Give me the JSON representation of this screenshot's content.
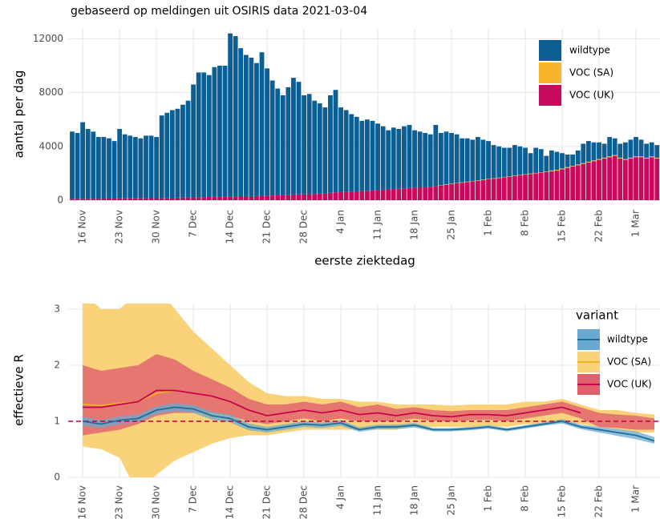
{
  "chart_data": [
    {
      "type": "bar",
      "stacked": true,
      "title": "gebaseerd op meldingen uit OSIRIS data 2021-03-04",
      "y_label": "aantal per dag",
      "x_label": "eerste ziektedag",
      "ylim": [
        0,
        12800
      ],
      "yticks": [
        0,
        4000,
        8000,
        12000
      ],
      "grid": true,
      "legend": "top-right",
      "categories": [
        null,
        null,
        "16 Nov",
        null,
        null,
        null,
        null,
        null,
        null,
        "23 Nov",
        null,
        null,
        null,
        null,
        null,
        null,
        "30 Nov",
        null,
        null,
        null,
        null,
        null,
        null,
        "7 Dec",
        null,
        null,
        null,
        null,
        null,
        null,
        "14 Dec",
        null,
        null,
        null,
        null,
        null,
        null,
        "21 Dec",
        null,
        null,
        null,
        null,
        null,
        null,
        "28 Dec",
        null,
        null,
        null,
        null,
        null,
        null,
        "4 Jan",
        null,
        null,
        null,
        null,
        null,
        null,
        "11 Jan",
        null,
        null,
        null,
        null,
        null,
        null,
        "18 Jan",
        null,
        null,
        null,
        null,
        null,
        null,
        "25 Jan",
        null,
        null,
        null,
        null,
        null,
        null,
        "1 Feb",
        null,
        null,
        null,
        null,
        null,
        null,
        "8 Feb",
        null,
        null,
        null,
        null,
        null,
        null,
        "15 Feb",
        null,
        null,
        null,
        null,
        null,
        null,
        "22 Feb",
        null,
        null,
        null,
        null,
        null,
        null,
        "1 Mar",
        null,
        null,
        null,
        null
      ],
      "series": [
        {
          "name": "wildtype",
          "color": "#0b5f94",
          "values": [
            5000,
            4900,
            5690,
            5190,
            4990,
            4590,
            4580,
            4480,
            4280,
            5170,
            4770,
            4670,
            4570,
            4460,
            4660,
            4650,
            4550,
            6140,
            6330,
            6520,
            6610,
            6900,
            7200,
            8390,
            9280,
            9270,
            9060,
            9650,
            9740,
            9740,
            12120,
            11910,
            11000,
            10500,
            10290,
            9880,
            10670,
            9460,
            8550,
            7940,
            7420,
            8000,
            8680,
            8370,
            7360,
            7450,
            6930,
            6710,
            6400,
            7250,
            7620,
            6300,
            6080,
            5760,
            5540,
            5220,
            5300,
            5180,
            4950,
            4720,
            4400,
            4570,
            4450,
            4620,
            4700,
            4270,
            4150,
            4020,
            3900,
            4550,
            3870,
            3920,
            3770,
            3620,
            3270,
            3220,
            3070,
            3220,
            2970,
            2820,
            2470,
            2320,
            2170,
            2120,
            2270,
            2120,
            1970,
            1520,
            1870,
            1720,
            1170,
            1490,
            1340,
            1140,
            940,
            840,
            1040,
            1440,
            1540,
            1340,
            1240,
            1040,
            1440,
            1240,
            1040,
            1240,
            1340,
            1440,
            1240,
            1040,
            1040,
            940
          ]
        },
        {
          "name": "VOC (SA)",
          "color": "#f7b52b",
          "values": [
            0,
            0,
            0,
            0,
            0,
            0,
            0,
            0,
            0,
            0,
            0,
            0,
            0,
            0,
            0,
            0,
            0,
            0,
            0,
            0,
            0,
            0,
            0,
            0,
            0,
            0,
            0,
            0,
            0,
            0,
            0,
            0,
            0,
            0,
            0,
            0,
            0,
            0,
            0,
            0,
            0,
            0,
            0,
            0,
            0,
            0,
            0,
            0,
            0,
            0,
            0,
            0,
            0,
            0,
            0,
            0,
            0,
            0,
            0,
            0,
            0,
            0,
            0,
            0,
            0,
            0,
            0,
            0,
            0,
            0,
            30,
            30,
            30,
            30,
            30,
            30,
            30,
            30,
            30,
            30,
            30,
            30,
            30,
            30,
            30,
            30,
            30,
            30,
            30,
            30,
            30,
            60,
            60,
            60,
            60,
            60,
            60,
            60,
            60,
            60,
            60,
            60,
            60,
            60,
            60,
            60,
            60,
            60,
            60,
            60,
            60,
            60
          ]
        },
        {
          "name": "VOC (UK)",
          "color": "#c70a5c",
          "values": [
            100,
            100,
            110,
            110,
            110,
            110,
            120,
            120,
            120,
            130,
            130,
            130,
            130,
            140,
            140,
            150,
            150,
            160,
            170,
            180,
            190,
            200,
            200,
            210,
            220,
            230,
            240,
            250,
            260,
            260,
            280,
            290,
            300,
            300,
            310,
            320,
            330,
            340,
            350,
            360,
            380,
            400,
            420,
            430,
            440,
            450,
            470,
            490,
            500,
            550,
            580,
            600,
            620,
            640,
            660,
            680,
            700,
            720,
            750,
            780,
            800,
            830,
            850,
            880,
            900,
            930,
            950,
            980,
            1000,
            1050,
            1100,
            1150,
            1200,
            1250,
            1300,
            1350,
            1400,
            1450,
            1500,
            1550,
            1600,
            1650,
            1700,
            1750,
            1800,
            1850,
            1900,
            1950,
            2000,
            2050,
            2100,
            2150,
            2200,
            2300,
            2400,
            2500,
            2600,
            2700,
            2800,
            2900,
            3000,
            3100,
            3200,
            3300,
            3100,
            3000,
            3100,
            3200,
            3200,
            3100,
            3200,
            3100
          ]
        }
      ]
    },
    {
      "type": "line",
      "y_label": "effectieve R",
      "legend_title": "variant",
      "legend": "top-right",
      "ylim": [
        0,
        3.1
      ],
      "yticks": [
        0,
        1,
        2,
        3
      ],
      "grid": true,
      "reference_line": 1,
      "reference_color": "#c0003c",
      "categories": [
        "16 Nov",
        null,
        "23 Nov",
        null,
        "30 Nov",
        null,
        "7 Dec",
        null,
        "14 Dec",
        null,
        "21 Dec",
        null,
        "28 Dec",
        null,
        "4 Jan",
        null,
        "11 Jan",
        null,
        "18 Jan",
        null,
        "25 Jan",
        null,
        "1 Feb",
        null,
        "8 Feb",
        null,
        "15 Feb",
        null,
        "22 Feb",
        null,
        "1 Mar",
        null
      ],
      "series": [
        {
          "name": "wildtype",
          "color": "#1f6e96",
          "band_color": "#6aaad2",
          "values": [
            1.0,
            0.95,
            1.02,
            1.05,
            1.2,
            1.25,
            1.22,
            1.1,
            1.05,
            0.9,
            0.85,
            0.9,
            0.95,
            0.93,
            0.97,
            0.85,
            0.9,
            0.9,
            0.93,
            0.85,
            0.85,
            0.87,
            0.9,
            0.85,
            0.9,
            0.95,
            1.0,
            0.9,
            0.85,
            0.8,
            0.75,
            0.65
          ],
          "lower": [
            0.92,
            0.88,
            0.95,
            0.98,
            1.13,
            1.18,
            1.15,
            1.03,
            0.98,
            0.84,
            0.8,
            0.85,
            0.9,
            0.88,
            0.92,
            0.81,
            0.86,
            0.86,
            0.89,
            0.82,
            0.82,
            0.84,
            0.87,
            0.82,
            0.87,
            0.92,
            0.96,
            0.86,
            0.8,
            0.74,
            0.68,
            0.6
          ],
          "upper": [
            1.08,
            1.02,
            1.09,
            1.12,
            1.27,
            1.32,
            1.29,
            1.17,
            1.12,
            0.96,
            0.9,
            0.95,
            1.0,
            0.98,
            1.02,
            0.89,
            0.94,
            0.94,
            0.97,
            0.88,
            0.88,
            0.9,
            0.93,
            0.88,
            0.93,
            0.98,
            1.04,
            0.94,
            0.9,
            0.86,
            0.82,
            0.72
          ]
        },
        {
          "name": "VOC (SA)",
          "color": "#f5b21e",
          "band_color": "#f9d27a",
          "values": [
            1.3,
            1.28,
            1.32,
            1.35,
            1.5,
            1.55,
            1.5,
            1.45,
            1.35,
            1.2,
            1.1,
            1.15,
            1.2,
            1.15,
            1.2,
            1.12,
            1.15,
            1.1,
            1.15,
            1.1,
            1.08,
            1.12,
            1.12,
            1.1,
            1.15,
            1.2,
            1.25,
            1.15,
            null,
            null,
            null,
            null
          ],
          "lower": [
            0.55,
            0.5,
            0.35,
            -0.3,
            0.05,
            0.3,
            0.45,
            0.6,
            0.7,
            0.75,
            0.75,
            0.8,
            0.85,
            0.85,
            0.85,
            0.85,
            0.85,
            0.85,
            0.9,
            0.9,
            0.9,
            0.9,
            0.92,
            0.9,
            0.95,
            0.95,
            1.0,
            0.95,
            0.9,
            0.85,
            0.8,
            0.8
          ],
          "upper": [
            3.3,
            3.0,
            3.0,
            3.3,
            3.4,
            3.0,
            2.6,
            2.3,
            2.0,
            1.7,
            1.5,
            1.45,
            1.45,
            1.4,
            1.4,
            1.35,
            1.35,
            1.3,
            1.3,
            1.3,
            1.28,
            1.3,
            1.3,
            1.3,
            1.35,
            1.35,
            1.4,
            1.3,
            1.2,
            1.2,
            1.15,
            1.12
          ]
        },
        {
          "name": "VOC (UK)",
          "color": "#c8004f",
          "band_color": "#e0606e",
          "values": [
            1.25,
            1.25,
            1.3,
            1.35,
            1.55,
            1.55,
            1.5,
            1.45,
            1.35,
            1.2,
            1.1,
            1.15,
            1.2,
            1.15,
            1.2,
            1.12,
            1.15,
            1.1,
            1.15,
            1.1,
            1.08,
            1.12,
            1.12,
            1.1,
            1.15,
            1.2,
            1.25,
            1.15,
            null,
            null,
            null,
            null
          ],
          "lower": [
            0.75,
            0.8,
            0.85,
            0.95,
            1.1,
            1.15,
            1.15,
            1.15,
            1.1,
            1.0,
            0.95,
            1.0,
            1.05,
            1.0,
            1.05,
            1.0,
            1.0,
            1.0,
            1.05,
            1.0,
            1.0,
            1.02,
            1.03,
            1.0,
            1.05,
            1.1,
            1.15,
            1.05,
            0.9,
            0.88,
            0.85,
            0.85
          ],
          "upper": [
            2.0,
            1.9,
            1.95,
            2.0,
            2.2,
            2.1,
            1.9,
            1.75,
            1.6,
            1.4,
            1.3,
            1.3,
            1.35,
            1.3,
            1.35,
            1.25,
            1.3,
            1.22,
            1.25,
            1.2,
            1.18,
            1.2,
            1.2,
            1.2,
            1.25,
            1.3,
            1.35,
            1.25,
            1.15,
            1.12,
            1.1,
            1.05
          ]
        }
      ]
    }
  ]
}
